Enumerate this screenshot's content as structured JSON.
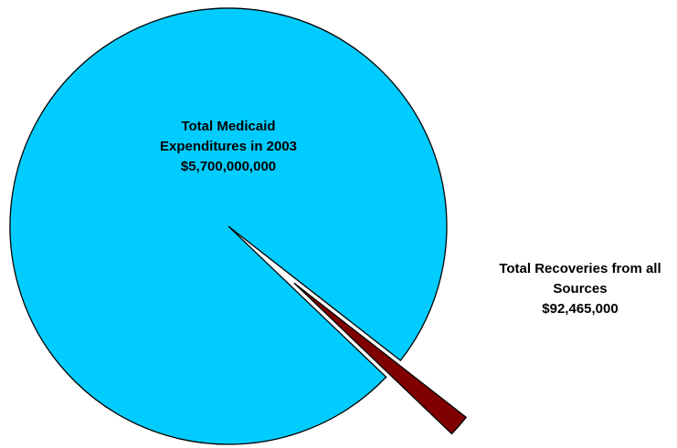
{
  "chart_data": {
    "type": "pie",
    "exploded": true,
    "slices": [
      {
        "label_lines": [
          "Total Medicaid",
          "Expenditures in 2003",
          "$5,700,000,000"
        ],
        "value": 5700000000,
        "color": "#00ccff"
      },
      {
        "label_lines": [
          "Total Recoveries from all",
          "Sources",
          "$92,465,000"
        ],
        "value": 92465000,
        "color": "#800000"
      }
    ],
    "legend": false
  }
}
